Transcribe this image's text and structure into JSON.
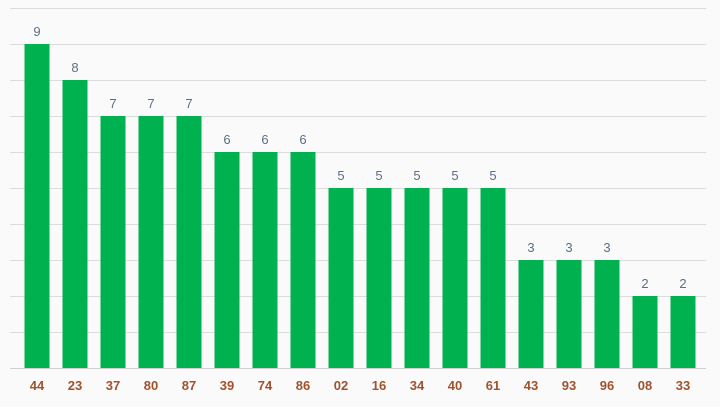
{
  "colors": {
    "bar": "#00b14f",
    "tick_label": "#a0522d",
    "value_label": "#5b6f86",
    "grid": "#dcdcdc"
  },
  "chart_data": {
    "type": "bar",
    "categories": [
      "44",
      "23",
      "37",
      "80",
      "87",
      "39",
      "74",
      "86",
      "02",
      "16",
      "34",
      "40",
      "61",
      "43",
      "93",
      "96",
      "08",
      "33"
    ],
    "values": [
      9,
      8,
      7,
      7,
      7,
      6,
      6,
      6,
      5,
      5,
      5,
      5,
      5,
      3,
      3,
      3,
      2,
      2
    ],
    "ylim": [
      0,
      10
    ],
    "grid": true,
    "data_labels": true
  }
}
